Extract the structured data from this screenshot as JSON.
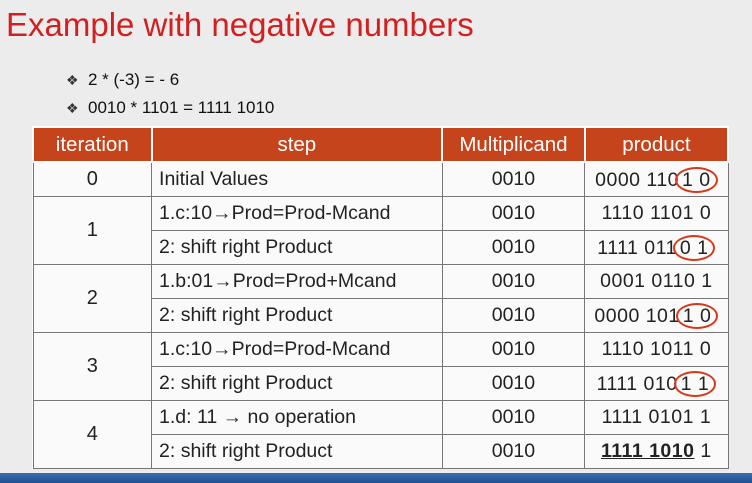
{
  "title": "Example with negative numbers",
  "bullets": [
    "2 * (-3) = - 6",
    "0010 * 1101 = 1111 1010"
  ],
  "bullet_glyph": "❖",
  "table": {
    "headers": [
      "iteration",
      "step",
      "Multiplicand",
      "product"
    ],
    "rows": [
      {
        "iteration": "0",
        "step": "Initial Values",
        "mcand": "0010",
        "product_main": "0000 110",
        "product_circled": "1 0",
        "product_tail": ""
      },
      {
        "iteration": "1",
        "step": "1.c:10→Prod=Prod-Mcand",
        "mcand": "0010",
        "product_main": "1110 1101 0",
        "product_circled": "",
        "product_tail": ""
      },
      {
        "iteration": "",
        "step": "2: shift right Product",
        "mcand": "0010",
        "product_main": "1111 011",
        "product_circled": "0 1",
        "product_tail": ""
      },
      {
        "iteration": "2",
        "step": "1.b:01→Prod=Prod+Mcand",
        "mcand": "0010",
        "product_main": "0001 0110 1",
        "product_circled": "",
        "product_tail": ""
      },
      {
        "iteration": "",
        "step": "2: shift right Product",
        "mcand": "0010",
        "product_main": "0000 101",
        "product_circled": "1 0",
        "product_tail": ""
      },
      {
        "iteration": "3",
        "step": "1.c:10→Prod=Prod-Mcand",
        "mcand": "0010",
        "product_main": "1110 1011 0",
        "product_circled": "",
        "product_tail": ""
      },
      {
        "iteration": "",
        "step": "2: shift right Product",
        "mcand": "0010",
        "product_main": "1111 010",
        "product_circled": "1 1",
        "product_tail": ""
      },
      {
        "iteration": "4",
        "step": "1.d: 11 → no operation",
        "mcand": "0010",
        "product_main": "1111 0101 1",
        "product_circled": "",
        "product_tail": ""
      },
      {
        "iteration": "",
        "step": "2: shift right Product",
        "mcand": "0010",
        "product_main": "",
        "product_circled": "",
        "product_final": "1111 1010",
        "product_tail": " 1"
      }
    ]
  },
  "colors": {
    "title": "#d22020",
    "header_bg": "#c5441c",
    "circle": "#d43b1c"
  }
}
